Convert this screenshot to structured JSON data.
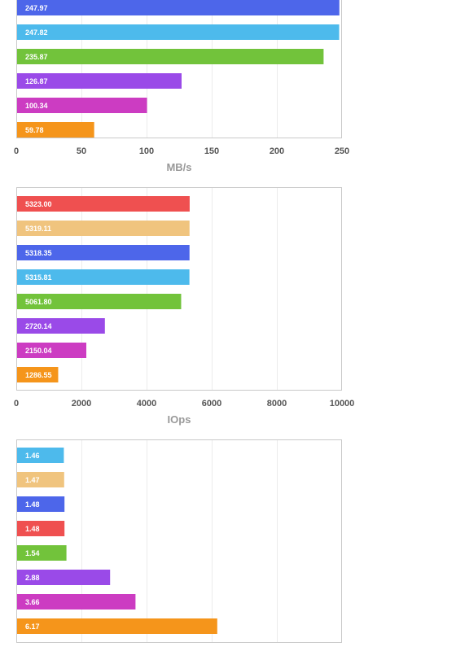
{
  "chart_data": [
    {
      "type": "bar",
      "orientation": "horizontal",
      "xlabel": "MB/s",
      "xlim": [
        0,
        250
      ],
      "ticks": [
        "0",
        "50",
        "100",
        "150",
        "200",
        "250"
      ],
      "grid": true,
      "series": [
        {
          "label": "247.97",
          "value": 247.97,
          "color": "#4d66ea"
        },
        {
          "label": "247.82",
          "value": 247.82,
          "color": "#4dbaec"
        },
        {
          "label": "235.87",
          "value": 235.87,
          "color": "#72c33b"
        },
        {
          "label": "126.87",
          "value": 126.87,
          "color": "#9a4ae8"
        },
        {
          "label": "100.34",
          "value": 100.34,
          "color": "#cc3cc2"
        },
        {
          "label": "59.78",
          "value": 59.78,
          "color": "#f5951b"
        }
      ]
    },
    {
      "type": "bar",
      "orientation": "horizontal",
      "xlabel": "IOps",
      "xlim": [
        0,
        10000
      ],
      "ticks": [
        "0",
        "2000",
        "4000",
        "6000",
        "8000",
        "10000"
      ],
      "grid": true,
      "series": [
        {
          "label": "5323.00",
          "value": 5323.0,
          "color": "#ef5050"
        },
        {
          "label": "5319.11",
          "value": 5319.11,
          "color": "#f0c47e"
        },
        {
          "label": "5318.35",
          "value": 5318.35,
          "color": "#4d66ea"
        },
        {
          "label": "5315.81",
          "value": 5315.81,
          "color": "#4dbaec"
        },
        {
          "label": "5061.80",
          "value": 5061.8,
          "color": "#72c33b"
        },
        {
          "label": "2720.14",
          "value": 2720.14,
          "color": "#9a4ae8"
        },
        {
          "label": "2150.04",
          "value": 2150.04,
          "color": "#cc3cc2"
        },
        {
          "label": "1286.55",
          "value": 1286.55,
          "color": "#f5951b"
        }
      ]
    },
    {
      "type": "bar",
      "orientation": "horizontal",
      "xlabel": "",
      "xlim": [
        0,
        10
      ],
      "ticks": [],
      "grid": true,
      "series": [
        {
          "label": "1.46",
          "value": 1.46,
          "color": "#4dbaec"
        },
        {
          "label": "1.47",
          "value": 1.47,
          "color": "#f0c47e"
        },
        {
          "label": "1.48",
          "value": 1.48,
          "color": "#4d66ea"
        },
        {
          "label": "1.48",
          "value": 1.48,
          "color": "#ef5050"
        },
        {
          "label": "1.54",
          "value": 1.54,
          "color": "#72c33b"
        },
        {
          "label": "2.88",
          "value": 2.88,
          "color": "#9a4ae8"
        },
        {
          "label": "3.66",
          "value": 3.66,
          "color": "#cc3cc2"
        },
        {
          "label": "6.17",
          "value": 6.17,
          "color": "#f5951b"
        }
      ]
    }
  ]
}
